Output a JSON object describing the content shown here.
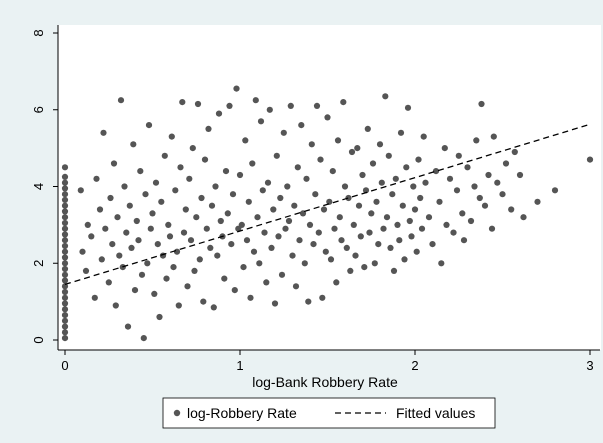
{
  "chart_data": {
    "type": "scatter",
    "title": "",
    "xlabel": "log-Bank Robbery Rate",
    "ylabel": "",
    "xlim": [
      -0.05,
      3.05
    ],
    "ylim": [
      -0.2,
      8.2
    ],
    "xticks": [
      0,
      1,
      2,
      3
    ],
    "yticks": [
      0,
      2,
      4,
      6,
      8
    ],
    "grid": false,
    "legend_position": "bottom",
    "colors": {
      "outer_background": "#eaf2f3",
      "plot_background": "#ffffff",
      "points": "#555555",
      "fit_line": "#000000"
    },
    "series": [
      {
        "name": "log-Robbery Rate",
        "type": "scatter",
        "points": [
          [
            0,
            0.05
          ],
          [
            0,
            0.2
          ],
          [
            0,
            0.35
          ],
          [
            0,
            0.5
          ],
          [
            0,
            0.65
          ],
          [
            0,
            0.8
          ],
          [
            0,
            0.95
          ],
          [
            0,
            1.1
          ],
          [
            0,
            1.25
          ],
          [
            0,
            1.4
          ],
          [
            0,
            1.55
          ],
          [
            0,
            1.7
          ],
          [
            0,
            1.85
          ],
          [
            0,
            2.0
          ],
          [
            0,
            2.15
          ],
          [
            0,
            2.3
          ],
          [
            0,
            2.45
          ],
          [
            0,
            2.6
          ],
          [
            0,
            2.75
          ],
          [
            0,
            2.9
          ],
          [
            0,
            3.05
          ],
          [
            0,
            3.2
          ],
          [
            0,
            3.35
          ],
          [
            0,
            3.5
          ],
          [
            0,
            3.65
          ],
          [
            0,
            3.8
          ],
          [
            0,
            3.95
          ],
          [
            0,
            4.1
          ],
          [
            0,
            4.25
          ],
          [
            0,
            4.5
          ],
          [
            0.09,
            3.9
          ],
          [
            0.1,
            2.3
          ],
          [
            0.12,
            1.8
          ],
          [
            0.13,
            3.0
          ],
          [
            0.15,
            2.7
          ],
          [
            0.17,
            1.1
          ],
          [
            0.18,
            4.2
          ],
          [
            0.2,
            3.4
          ],
          [
            0.21,
            2.1
          ],
          [
            0.22,
            5.4
          ],
          [
            0.23,
            2.9
          ],
          [
            0.25,
            1.5
          ],
          [
            0.26,
            3.7
          ],
          [
            0.27,
            2.5
          ],
          [
            0.28,
            4.6
          ],
          [
            0.29,
            0.9
          ],
          [
            0.3,
            3.2
          ],
          [
            0.31,
            2.2
          ],
          [
            0.32,
            6.25
          ],
          [
            0.33,
            1.9
          ],
          [
            0.34,
            4.0
          ],
          [
            0.35,
            2.8
          ],
          [
            0.36,
            0.35
          ],
          [
            0.37,
            3.5
          ],
          [
            0.38,
            2.4
          ],
          [
            0.39,
            5.1
          ],
          [
            0.4,
            1.3
          ],
          [
            0.41,
            3.1
          ],
          [
            0.42,
            2.6
          ],
          [
            0.43,
            4.4
          ],
          [
            0.44,
            1.7
          ],
          [
            0.45,
            0.05
          ],
          [
            0.46,
            3.8
          ],
          [
            0.47,
            2.0
          ],
          [
            0.48,
            5.6
          ],
          [
            0.49,
            2.9
          ],
          [
            0.5,
            3.3
          ],
          [
            0.51,
            1.2
          ],
          [
            0.52,
            4.1
          ],
          [
            0.53,
            2.5
          ],
          [
            0.54,
            0.6
          ],
          [
            0.55,
            3.6
          ],
          [
            0.56,
            2.2
          ],
          [
            0.57,
            4.8
          ],
          [
            0.58,
            1.6
          ],
          [
            0.59,
            3.0
          ],
          [
            0.6,
            2.7
          ],
          [
            0.61,
            5.3
          ],
          [
            0.62,
            1.9
          ],
          [
            0.63,
            3.9
          ],
          [
            0.64,
            2.3
          ],
          [
            0.65,
            0.9
          ],
          [
            0.66,
            4.5
          ],
          [
            0.67,
            6.2
          ],
          [
            0.68,
            2.8
          ],
          [
            0.69,
            3.4
          ],
          [
            0.7,
            1.4
          ],
          [
            0.71,
            4.2
          ],
          [
            0.72,
            2.6
          ],
          [
            0.73,
            5.0
          ],
          [
            0.74,
            1.8
          ],
          [
            0.75,
            3.2
          ],
          [
            0.76,
            6.15
          ],
          [
            0.77,
            2.1
          ],
          [
            0.78,
            3.7
          ],
          [
            0.79,
            1.0
          ],
          [
            0.8,
            4.7
          ],
          [
            0.81,
            2.9
          ],
          [
            0.82,
            5.5
          ],
          [
            0.83,
            2.4
          ],
          [
            0.84,
            3.5
          ],
          [
            0.85,
            0.85
          ],
          [
            0.86,
            4.0
          ],
          [
            0.87,
            2.2
          ],
          [
            0.88,
            5.9
          ],
          [
            0.89,
            3.1
          ],
          [
            0.9,
            2.7
          ],
          [
            0.91,
            1.6
          ],
          [
            0.92,
            4.4
          ],
          [
            0.93,
            3.3
          ],
          [
            0.94,
            6.1
          ],
          [
            0.95,
            2.5
          ],
          [
            0.96,
            3.8
          ],
          [
            0.97,
            1.3
          ],
          [
            0.98,
            6.55
          ],
          [
            0.99,
            2.9
          ],
          [
            1.0,
            4.3
          ],
          [
            1.01,
            3.0
          ],
          [
            1.02,
            1.9
          ],
          [
            1.03,
            5.2
          ],
          [
            1.04,
            2.6
          ],
          [
            1.05,
            3.6
          ],
          [
            1.06,
            1.1
          ],
          [
            1.07,
            4.6
          ],
          [
            1.08,
            2.3
          ],
          [
            1.09,
            6.25
          ],
          [
            1.1,
            3.2
          ],
          [
            1.11,
            2.0
          ],
          [
            1.12,
            5.7
          ],
          [
            1.13,
            3.9
          ],
          [
            1.14,
            2.8
          ],
          [
            1.15,
            1.5
          ],
          [
            1.16,
            4.1
          ],
          [
            1.17,
            6.0
          ],
          [
            1.18,
            2.4
          ],
          [
            1.19,
            3.4
          ],
          [
            1.2,
            0.95
          ],
          [
            1.21,
            4.8
          ],
          [
            1.22,
            2.7
          ],
          [
            1.23,
            3.7
          ],
          [
            1.24,
            1.7
          ],
          [
            1.25,
            5.4
          ],
          [
            1.26,
            2.9
          ],
          [
            1.27,
            4.0
          ],
          [
            1.28,
            3.1
          ],
          [
            1.29,
            6.1
          ],
          [
            1.3,
            2.2
          ],
          [
            1.31,
            3.5
          ],
          [
            1.32,
            1.4
          ],
          [
            1.33,
            4.5
          ],
          [
            1.34,
            2.6
          ],
          [
            1.35,
            5.6
          ],
          [
            1.36,
            3.3
          ],
          [
            1.37,
            2.0
          ],
          [
            1.38,
            4.2
          ],
          [
            1.39,
            1.0
          ],
          [
            1.4,
            3.0
          ],
          [
            1.41,
            5.1
          ],
          [
            1.42,
            2.5
          ],
          [
            1.43,
            3.8
          ],
          [
            1.44,
            6.1
          ],
          [
            1.45,
            2.8
          ],
          [
            1.46,
            4.7
          ],
          [
            1.47,
            1.1
          ],
          [
            1.48,
            3.4
          ],
          [
            1.49,
            2.3
          ],
          [
            1.5,
            5.8
          ],
          [
            1.51,
            3.6
          ],
          [
            1.52,
            2.1
          ],
          [
            1.53,
            4.4
          ],
          [
            1.54,
            2.9
          ],
          [
            1.55,
            1.5
          ],
          [
            1.56,
            5.2
          ],
          [
            1.57,
            3.2
          ],
          [
            1.58,
            2.6
          ],
          [
            1.59,
            6.2
          ],
          [
            1.6,
            4.0
          ],
          [
            1.61,
            2.4
          ],
          [
            1.62,
            3.7
          ],
          [
            1.63,
            1.8
          ],
          [
            1.64,
            4.9
          ],
          [
            1.65,
            3.0
          ],
          [
            1.66,
            2.2
          ],
          [
            1.67,
            5.0
          ],
          [
            1.68,
            3.5
          ],
          [
            1.69,
            2.7
          ],
          [
            1.7,
            4.3
          ],
          [
            1.71,
            1.9
          ],
          [
            1.72,
            3.9
          ],
          [
            1.73,
            5.5
          ],
          [
            1.74,
            2.8
          ],
          [
            1.75,
            3.3
          ],
          [
            1.76,
            4.6
          ],
          [
            1.77,
            2.0
          ],
          [
            1.78,
            3.6
          ],
          [
            1.79,
            2.5
          ],
          [
            1.8,
            5.1
          ],
          [
            1.81,
            4.1
          ],
          [
            1.82,
            2.9
          ],
          [
            1.83,
            6.35
          ],
          [
            1.84,
            3.2
          ],
          [
            1.85,
            4.8
          ],
          [
            1.86,
            2.4
          ],
          [
            1.87,
            3.8
          ],
          [
            1.88,
            1.8
          ],
          [
            1.89,
            4.2
          ],
          [
            1.9,
            3.0
          ],
          [
            1.91,
            2.6
          ],
          [
            1.92,
            5.4
          ],
          [
            1.93,
            3.5
          ],
          [
            1.94,
            2.1
          ],
          [
            1.95,
            4.5
          ],
          [
            1.96,
            6.05
          ],
          [
            1.97,
            3.1
          ],
          [
            1.98,
            2.7
          ],
          [
            1.99,
            4.0
          ],
          [
            2.0,
            3.4
          ],
          [
            2.01,
            2.3
          ],
          [
            2.02,
            4.7
          ],
          [
            2.03,
            3.7
          ],
          [
            2.04,
            2.9
          ],
          [
            2.05,
            5.3
          ],
          [
            2.06,
            4.1
          ],
          [
            2.08,
            3.2
          ],
          [
            2.1,
            2.5
          ],
          [
            2.12,
            4.4
          ],
          [
            2.14,
            3.6
          ],
          [
            2.15,
            2.0
          ],
          [
            2.17,
            5.0
          ],
          [
            2.18,
            3.0
          ],
          [
            2.2,
            4.2
          ],
          [
            2.22,
            2.8
          ],
          [
            2.24,
            3.9
          ],
          [
            2.25,
            4.8
          ],
          [
            2.27,
            3.3
          ],
          [
            2.28,
            2.6
          ],
          [
            2.3,
            4.5
          ],
          [
            2.32,
            3.1
          ],
          [
            2.34,
            4.0
          ],
          [
            2.35,
            5.2
          ],
          [
            2.37,
            3.7
          ],
          [
            2.38,
            6.15
          ],
          [
            2.4,
            3.5
          ],
          [
            2.42,
            4.3
          ],
          [
            2.44,
            2.9
          ],
          [
            2.45,
            5.3
          ],
          [
            2.47,
            4.1
          ],
          [
            2.5,
            3.8
          ],
          [
            2.52,
            4.6
          ],
          [
            2.55,
            3.4
          ],
          [
            2.57,
            4.9
          ],
          [
            2.6,
            4.3
          ],
          [
            2.62,
            3.2
          ],
          [
            2.7,
            3.6
          ],
          [
            2.8,
            3.9
          ],
          [
            3.0,
            4.7
          ]
        ]
      },
      {
        "name": "Fitted values",
        "type": "line",
        "style": "dashed",
        "x": [
          0,
          3.0
        ],
        "y": [
          1.45,
          5.62
        ]
      }
    ],
    "legend": [
      "log-Robbery Rate",
      "Fitted values"
    ]
  }
}
